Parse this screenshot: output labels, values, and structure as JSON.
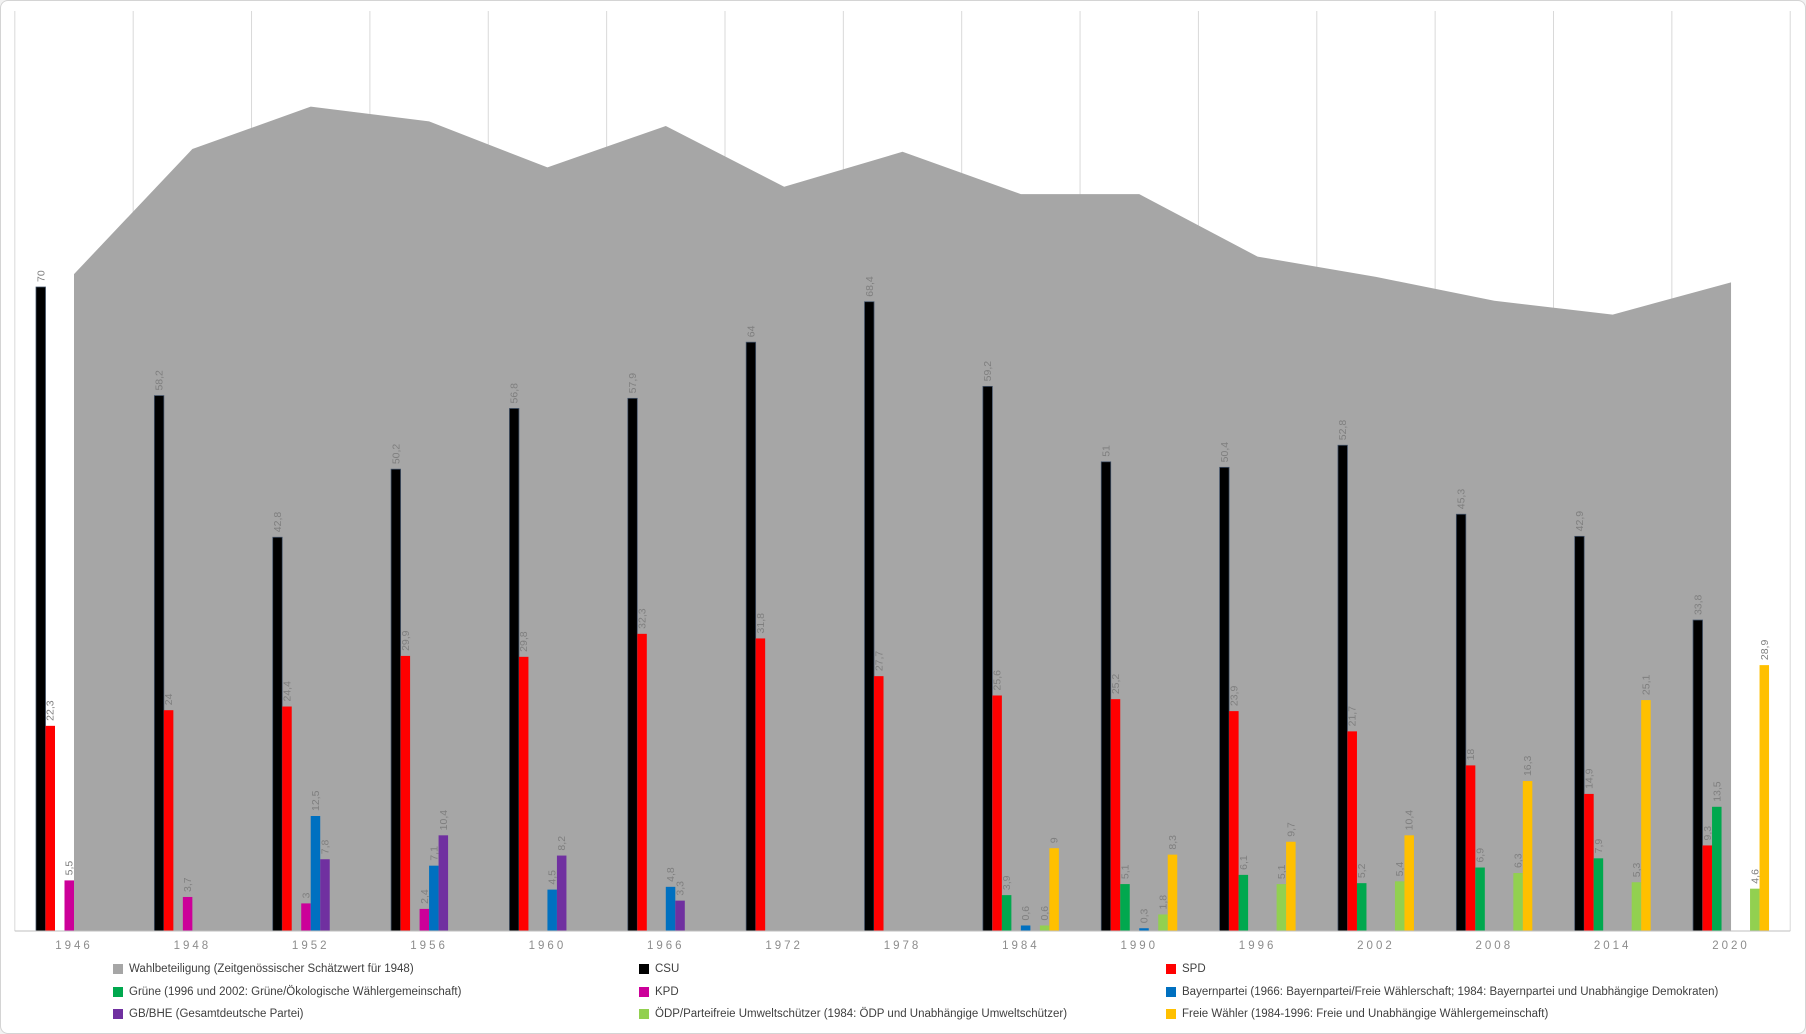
{
  "chart_data": {
    "type": "bar",
    "title": "",
    "categories": [
      "1946",
      "1948",
      "1952",
      "1956",
      "1960",
      "1966",
      "1972",
      "1978",
      "1984",
      "1990",
      "1996",
      "2002",
      "2008",
      "2014",
      "2020"
    ],
    "ylim": [
      0,
      100
    ],
    "grid": "vertical-lines-between-categories",
    "legend_position": "bottom",
    "decimal_separator": ",",
    "area_series": {
      "id": "wahlbeteiligung",
      "name": "Wahlbeteiligung (Zeitgenössischer Schätzwert für 1948)",
      "color": "#A6A6A6",
      "values_estimated": [
        71.4,
        85,
        89.6,
        88,
        83,
        87.5,
        80.9,
        84.7,
        80.1,
        80.1,
        73.3,
        71.1,
        68.5,
        67,
        70.5
      ],
      "has_data_labels": false
    },
    "series": [
      {
        "id": "csu",
        "name": "CSU",
        "color": "#000000",
        "values": [
          70,
          58.2,
          42.8,
          50.2,
          56.8,
          57.9,
          64,
          68.4,
          59.2,
          51,
          50.4,
          52.8,
          45.3,
          42.9,
          33.8
        ]
      },
      {
        "id": "spd",
        "name": "SPD",
        "color": "#FF0000",
        "values": [
          22.3,
          24,
          24.4,
          29.9,
          29.8,
          32.3,
          31.8,
          27.7,
          25.6,
          25.2,
          23.9,
          21.7,
          18,
          14.9,
          9.3
        ]
      },
      {
        "id": "gruene",
        "name": "Grüne (1996 und 2002: Grüne/Ökologische Wählergemeinschaft)",
        "color": "#00A84E",
        "values": [
          null,
          null,
          null,
          null,
          null,
          null,
          null,
          null,
          3.9,
          5.1,
          6.1,
          5.2,
          6.9,
          7.9,
          13.5
        ]
      },
      {
        "id": "kpd",
        "name": "KPD",
        "color": "#CC0099",
        "values": [
          5.5,
          3.7,
          3,
          2.4,
          null,
          null,
          null,
          null,
          null,
          null,
          null,
          null,
          null,
          null,
          null
        ]
      },
      {
        "id": "bayernpartei",
        "name": "Bayernpartei (1966: Bayernpartei/Freie Wählerschaft; 1984: Bayernpartei und Unabhängige Demokraten)",
        "color": "#0070C0",
        "values": [
          null,
          null,
          12.5,
          7.1,
          4.5,
          4.8,
          null,
          null,
          0.6,
          0.3,
          null,
          null,
          null,
          null,
          null
        ]
      },
      {
        "id": "gb-bhe",
        "name": "GB/BHE (Gesamtdeutsche Partei)",
        "color": "#7030A0",
        "values": [
          null,
          null,
          7.8,
          10.4,
          8.2,
          3.3,
          null,
          null,
          null,
          null,
          null,
          null,
          null,
          null,
          null
        ]
      },
      {
        "id": "oedp",
        "name": "ÖDP/Parteifreie Umweltschützer (1984: ÖDP und Unabhängige Umweltschützer)",
        "color": "#92D050",
        "values": [
          null,
          null,
          null,
          null,
          null,
          null,
          null,
          null,
          0.6,
          1.8,
          5.1,
          5.4,
          6.3,
          5.3,
          4.6
        ]
      },
      {
        "id": "freie-waehler",
        "name": "Freie Wähler (1984-1996: Freie und Unabhängige Wählergemeinschaft)",
        "color": "#FFC000",
        "values": [
          null,
          null,
          null,
          null,
          null,
          null,
          null,
          null,
          9,
          8.3,
          9.7,
          10.4,
          16.3,
          25.1,
          28.9
        ]
      }
    ]
  }
}
